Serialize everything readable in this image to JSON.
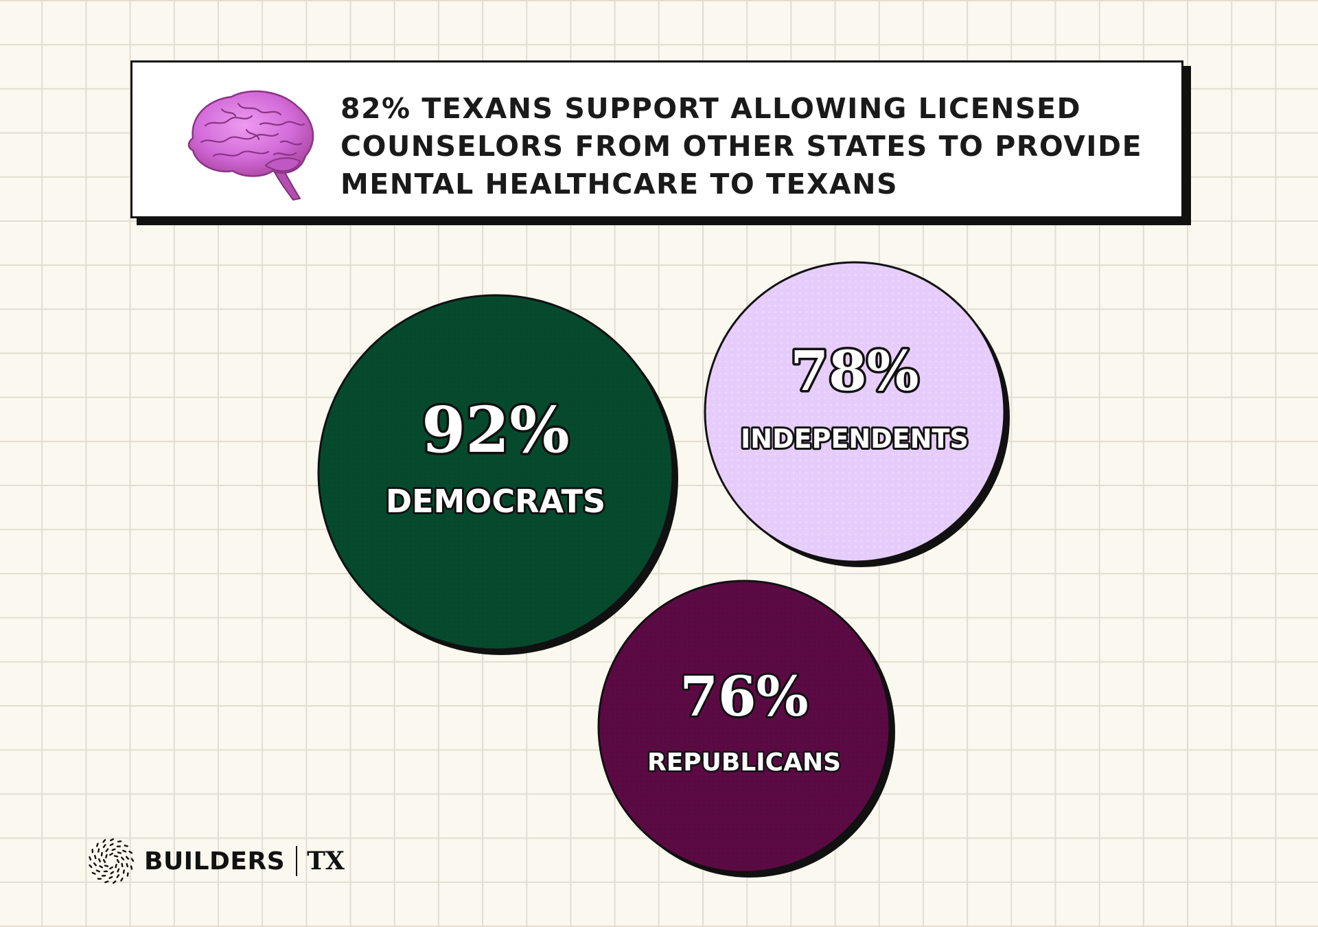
{
  "header": {
    "title": "82% TEXANS SUPPORT ALLOWING LICENSED COUNSELORS FROM OTHER STATES TO PROVIDE MENTAL HEALTHCARE TO TEXANS",
    "icon": "brain-icon"
  },
  "chart_data": {
    "type": "bubble",
    "title": "82% TEXANS SUPPORT ALLOWING LICENSED COUNSELORS FROM OTHER STATES TO PROVIDE MENTAL HEALTHCARE TO TEXANS",
    "categories": [
      "DEMOCRATS",
      "INDEPENDENTS",
      "REPUBLICANS"
    ],
    "values": [
      92,
      78,
      76
    ],
    "value_labels": [
      "92%",
      "78%",
      "76%"
    ],
    "unit": "%",
    "series": [
      {
        "name": "DEMOCRATS",
        "value": 92,
        "label": "92%",
        "color": "#064a2e",
        "text_color": "#ffffff"
      },
      {
        "name": "INDEPENDENTS",
        "value": 78,
        "label": "78%",
        "color": "#e6ccfb",
        "text_color": "#ffffff"
      },
      {
        "name": "REPUBLICANS",
        "value": 76,
        "label": "76%",
        "color": "#5b0a44",
        "text_color": "#ffffff"
      }
    ]
  },
  "logo": {
    "name": "BUILDERS",
    "region": "TX"
  },
  "colors": {
    "background": "#fbf8ef",
    "grid": "#e2ddd0",
    "outline": "#111111",
    "brain": "#d26bd8"
  }
}
